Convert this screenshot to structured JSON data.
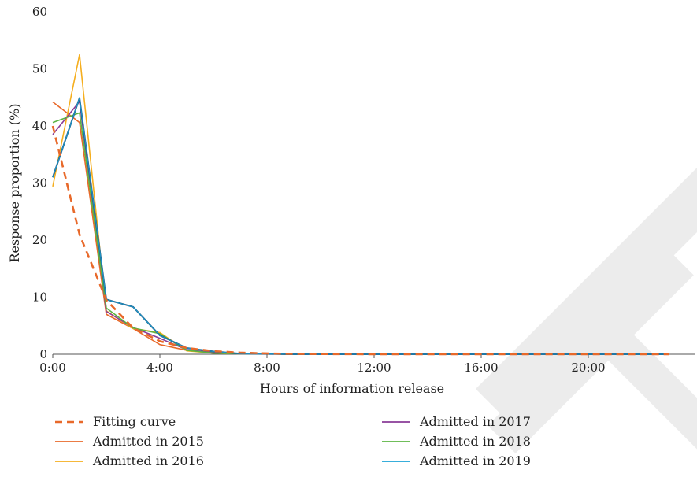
{
  "chart_data": {
    "type": "line",
    "xlabel": "Hours of information release",
    "ylabel": "Response proportion (%)",
    "xlim": [
      0,
      23
    ],
    "ylim": [
      0,
      60
    ],
    "x_ticks": [
      0,
      4,
      8,
      12,
      16,
      20
    ],
    "x_tick_labels": [
      "0:00",
      "4:00",
      "8:00",
      "12:00",
      "16:00",
      "20:00"
    ],
    "y_ticks": [
      0,
      10,
      20,
      30,
      40,
      50,
      60
    ],
    "y_tick_labels": [
      "0",
      "10",
      "20",
      "30",
      "40",
      "50",
      "60"
    ],
    "grid": false,
    "legend_position": "bottom",
    "x": [
      0,
      1,
      2,
      3,
      4,
      5,
      6,
      7,
      8,
      9,
      10,
      11,
      12,
      13,
      14,
      15,
      16,
      17,
      18,
      19,
      20,
      21,
      22,
      23
    ],
    "series": [
      {
        "name": "Fitting curve",
        "color": "#E8692A",
        "dashed": true,
        "values": [
          40,
          21,
          9.5,
          4.6,
          2.3,
          1.1,
          0.55,
          0.28,
          0.14,
          0.07,
          0.04,
          0.02,
          0.01,
          0.01,
          0,
          0,
          0,
          0,
          0,
          0,
          0,
          0,
          0,
          0
        ]
      },
      {
        "name": "Admitted in 2015",
        "color": "#E8692A",
        "dashed": false,
        "values": [
          44.2,
          40.6,
          7.0,
          4.5,
          1.7,
          0.7,
          0.2,
          0.1,
          0.05,
          0,
          0,
          0,
          0,
          0,
          0,
          0,
          0,
          0,
          0,
          0,
          0,
          0,
          0,
          0
        ]
      },
      {
        "name": "Admitted in 2016",
        "color": "#F5AE1E",
        "dashed": false,
        "values": [
          29.4,
          52.5,
          7.6,
          4.5,
          3.8,
          0.6,
          0.2,
          0.1,
          0.05,
          0,
          0,
          0,
          0,
          0,
          0,
          0,
          0,
          0,
          0,
          0,
          0,
          0,
          0,
          0
        ]
      },
      {
        "name": "Admitted in 2017",
        "color": "#8A3C97",
        "dashed": false,
        "values": [
          38.5,
          44.3,
          7.5,
          4.7,
          2.8,
          0.8,
          0.3,
          0.1,
          0.05,
          0,
          0,
          0,
          0,
          0,
          0,
          0,
          0,
          0,
          0,
          0,
          0,
          0,
          0,
          0
        ]
      },
      {
        "name": "Admitted in 2018",
        "color": "#5BB443",
        "dashed": false,
        "values": [
          40.6,
          42.3,
          8.1,
          4.6,
          3.6,
          0.7,
          0.2,
          0.1,
          0.05,
          0,
          0,
          0,
          0,
          0,
          0,
          0,
          0,
          0,
          0,
          0,
          0,
          0,
          0,
          0
        ]
      },
      {
        "name": "Admitted in 2019",
        "color": "#1CA3D6",
        "dashed": false,
        "values": [
          31.0,
          44.9,
          9.6,
          8.3,
          3.3,
          1.1,
          0.5,
          0.1,
          0.05,
          0,
          0,
          0,
          0,
          0,
          0,
          0,
          0,
          0,
          0,
          0,
          0,
          0,
          0,
          0
        ]
      }
    ],
    "outline_series_color": "#1F5F8B"
  }
}
